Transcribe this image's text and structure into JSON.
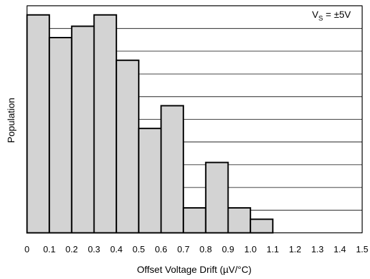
{
  "chart_data": {
    "type": "bar",
    "title": "",
    "xlabel": "Offset Voltage Drift (µV/°C)",
    "ylabel": "Population",
    "annotation": {
      "symbol": "V",
      "subscript": "S",
      "value": " = ±5V"
    },
    "x_ticks": [
      "0",
      "0.1",
      "0.2",
      "0.3",
      "0.4",
      "0.5",
      "0.6",
      "0.7",
      "0.8",
      "0.9",
      "1.0",
      "1.1",
      "1.2",
      "1.3",
      "1.4",
      "1.5"
    ],
    "xlim": [
      0,
      1.5
    ],
    "ylim": [
      0,
      10
    ],
    "grid": "horizontal",
    "bins": [
      {
        "x0": 0.0,
        "x1": 0.1,
        "value": 9.6
      },
      {
        "x0": 0.1,
        "x1": 0.2,
        "value": 8.6
      },
      {
        "x0": 0.2,
        "x1": 0.3,
        "value": 9.1
      },
      {
        "x0": 0.3,
        "x1": 0.4,
        "value": 9.6
      },
      {
        "x0": 0.4,
        "x1": 0.5,
        "value": 7.6
      },
      {
        "x0": 0.5,
        "x1": 0.6,
        "value": 4.6
      },
      {
        "x0": 0.6,
        "x1": 0.7,
        "value": 5.6
      },
      {
        "x0": 0.7,
        "x1": 0.8,
        "value": 1.1
      },
      {
        "x0": 0.8,
        "x1": 0.9,
        "value": 3.1
      },
      {
        "x0": 0.9,
        "x1": 1.0,
        "value": 1.1
      },
      {
        "x0": 1.0,
        "x1": 1.1,
        "value": 0.6
      }
    ],
    "colors": {
      "bar_fill": "#d3d3d3",
      "bar_stroke": "#000000",
      "grid": "#000000",
      "frame": "#000000"
    }
  }
}
